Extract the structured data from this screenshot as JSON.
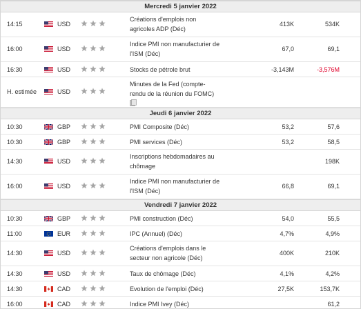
{
  "days": [
    {
      "title": "Mercredi 5 janvier 2022",
      "events": [
        {
          "time": "14:15",
          "flag": "us",
          "currency": "USD",
          "lines": [
            "Créations d'emplois non",
            "agricoles ADP (Déc)"
          ],
          "actual": "413K",
          "forecast": "534K"
        },
        {
          "time": "16:00",
          "flag": "us",
          "currency": "USD",
          "lines": [
            "Indice PMI non manufacturier de",
            "l'ISM (Déc)"
          ],
          "actual": "67,0",
          "forecast": "69,1"
        },
        {
          "time": "16:30",
          "flag": "us",
          "currency": "USD",
          "lines": [
            "Stocks de pétrole brut"
          ],
          "actual": "-3,143M",
          "forecast": "-3,576M",
          "forecast_negative": true
        },
        {
          "time": "H. estimée",
          "flag": "us",
          "currency": "USD",
          "lines": [
            "Minutes de la Fed (compte-",
            "rendu de la réunion du FOMC)"
          ],
          "actual": "",
          "forecast": "",
          "has_doc": true
        }
      ]
    },
    {
      "title": "Jeudi 6 janvier 2022",
      "events": [
        {
          "time": "10:30",
          "flag": "gb",
          "currency": "GBP",
          "lines": [
            "PMI Composite (Déc)"
          ],
          "actual": "53,2",
          "forecast": "57,6"
        },
        {
          "time": "10:30",
          "flag": "gb",
          "currency": "GBP",
          "lines": [
            "PMI services (Déc)"
          ],
          "actual": "53,2",
          "forecast": "58,5"
        },
        {
          "time": "14:30",
          "flag": "us",
          "currency": "USD",
          "lines": [
            "Inscriptions hebdomadaires au",
            "chômage"
          ],
          "actual": "",
          "forecast": "198K"
        },
        {
          "time": "16:00",
          "flag": "us",
          "currency": "USD",
          "lines": [
            "Indice PMI non manufacturier de",
            "l'ISM (Déc)"
          ],
          "actual": "66,8",
          "forecast": "69,1"
        }
      ]
    },
    {
      "title": "Vendredi 7 janvier 2022",
      "events": [
        {
          "time": "10:30",
          "flag": "gb",
          "currency": "GBP",
          "lines": [
            "PMI construction (Déc)"
          ],
          "actual": "54,0",
          "forecast": "55,5"
        },
        {
          "time": "11:00",
          "flag": "eu",
          "currency": "EUR",
          "lines": [
            "IPC (Annuel) (Déc)"
          ],
          "actual": "4,7%",
          "forecast": "4,9%"
        },
        {
          "time": "14:30",
          "flag": "us",
          "currency": "USD",
          "lines": [
            "Créations d'emplois dans le",
            "secteur non agricole (Déc)"
          ],
          "actual": "400K",
          "forecast": "210K"
        },
        {
          "time": "14:30",
          "flag": "us",
          "currency": "USD",
          "lines": [
            "Taux de chômage (Déc)"
          ],
          "actual": "4,1%",
          "forecast": "4,2%"
        },
        {
          "time": "14:30",
          "flag": "ca",
          "currency": "CAD",
          "lines": [
            "Evolution de l'emploi (Déc)"
          ],
          "actual": "27,5K",
          "forecast": "153,7K"
        },
        {
          "time": "16:00",
          "flag": "ca",
          "currency": "CAD",
          "lines": [
            "Indice PMI Ivey (Déc)"
          ],
          "actual": "",
          "forecast": "61,2"
        }
      ]
    }
  ],
  "importance_stars": 3,
  "colors": {
    "star": "#a5a5a5",
    "negative": "#e0002a",
    "header_bg": "#eeeeee"
  },
  "icons": {
    "importance": "star-icon",
    "document": "document-icon"
  }
}
